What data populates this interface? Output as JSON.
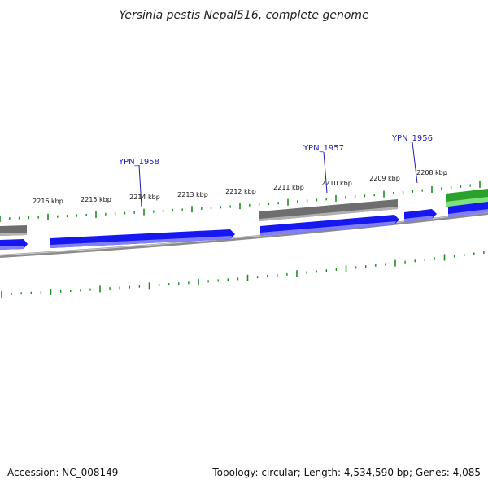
{
  "title": "Yersinia pestis Nepal516, complete genome",
  "footer": {
    "accession": "Accession: NC_008149",
    "stats": "Topology: circular; Length: 4,534,590 bp; Genes: 4,085"
  },
  "colors": {
    "forward_cds": "#1717f0",
    "reverse_feature": "#707070",
    "green_feature": "#2aa12a",
    "backbone": "#8c8c8c",
    "tick": "#1f8a1f",
    "gene_label": "#1c1cb4"
  },
  "scale_labels": [
    "2216 kbp",
    "2215 kbp",
    "2214 kbp",
    "2213 kbp",
    "2212 kbp",
    "2211 kbp",
    "2210 kbp",
    "2209 kbp",
    "2208 kbp"
  ],
  "gene_labels": [
    "YPN_1958",
    "YPN_1957",
    "YPN_1956"
  ]
}
